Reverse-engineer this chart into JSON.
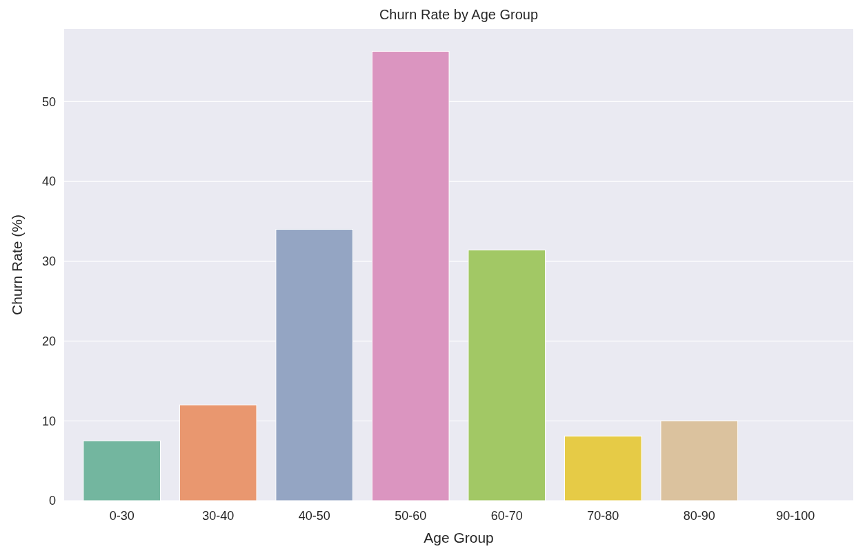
{
  "chart_data": {
    "type": "bar",
    "title": "Churn Rate by Age Group",
    "xlabel": "Age Group",
    "ylabel": "Churn Rate (%)",
    "categories": [
      "0-30",
      "30-40",
      "40-50",
      "50-60",
      "60-70",
      "70-80",
      "80-90",
      "90-100"
    ],
    "values": [
      7.5,
      12.0,
      34.0,
      56.3,
      31.4,
      8.1,
      10.0,
      0
    ],
    "colors": [
      "#73b69f",
      "#e9976f",
      "#94a5c3",
      "#db95c0",
      "#a2c865",
      "#e6cb46",
      "#dbc29e",
      "#b3b3b3"
    ],
    "ylim": [
      0,
      59.1
    ],
    "yticks": [
      0,
      10,
      20,
      30,
      40,
      50
    ],
    "grid": "y"
  }
}
